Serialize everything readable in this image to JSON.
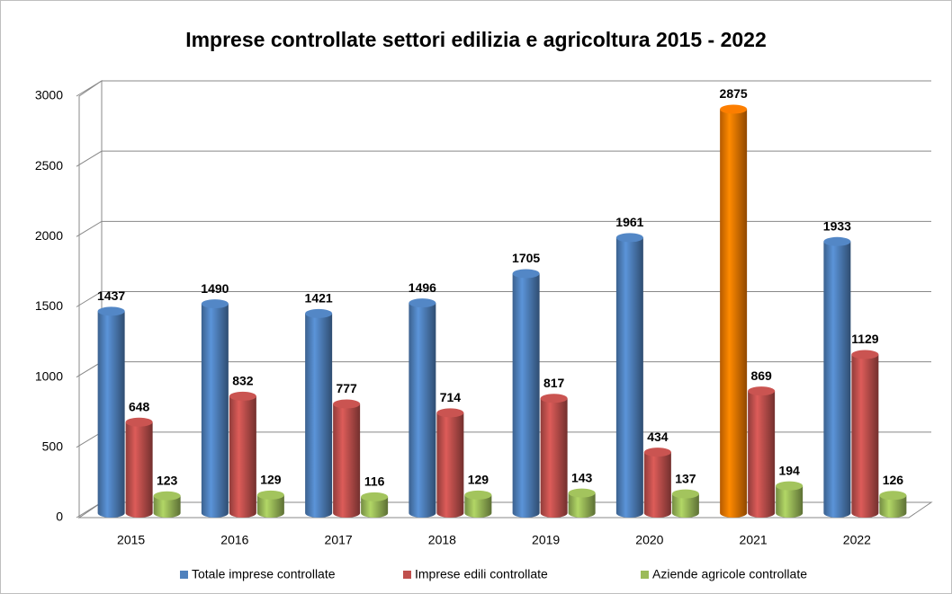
{
  "chart_data": {
    "type": "bar",
    "title": "Imprese controllate settori edilizia e agricoltura 2015 - 2022",
    "categories": [
      "2015",
      "2016",
      "2017",
      "2018",
      "2019",
      "2020",
      "2021",
      "2022"
    ],
    "series": [
      {
        "name": "Totale imprese controllate",
        "color": "#4f81bd",
        "values": [
          1437,
          1490,
          1421,
          1496,
          1705,
          1961,
          2875,
          1933
        ],
        "point_colors": [
          null,
          null,
          null,
          null,
          null,
          null,
          "#f07800",
          null
        ]
      },
      {
        "name": "Imprese edili controllate",
        "color": "#c0504d",
        "values": [
          648,
          832,
          777,
          714,
          817,
          434,
          869,
          1129
        ]
      },
      {
        "name": "Aziende agricole controllate",
        "color": "#9bbb59",
        "values": [
          123,
          129,
          116,
          129,
          143,
          137,
          194,
          126
        ]
      }
    ],
    "ylim": [
      0,
      3000
    ],
    "yticks": [
      0,
      500,
      1000,
      1500,
      2000,
      2500,
      3000
    ],
    "grid": true,
    "legend": "bottom"
  }
}
